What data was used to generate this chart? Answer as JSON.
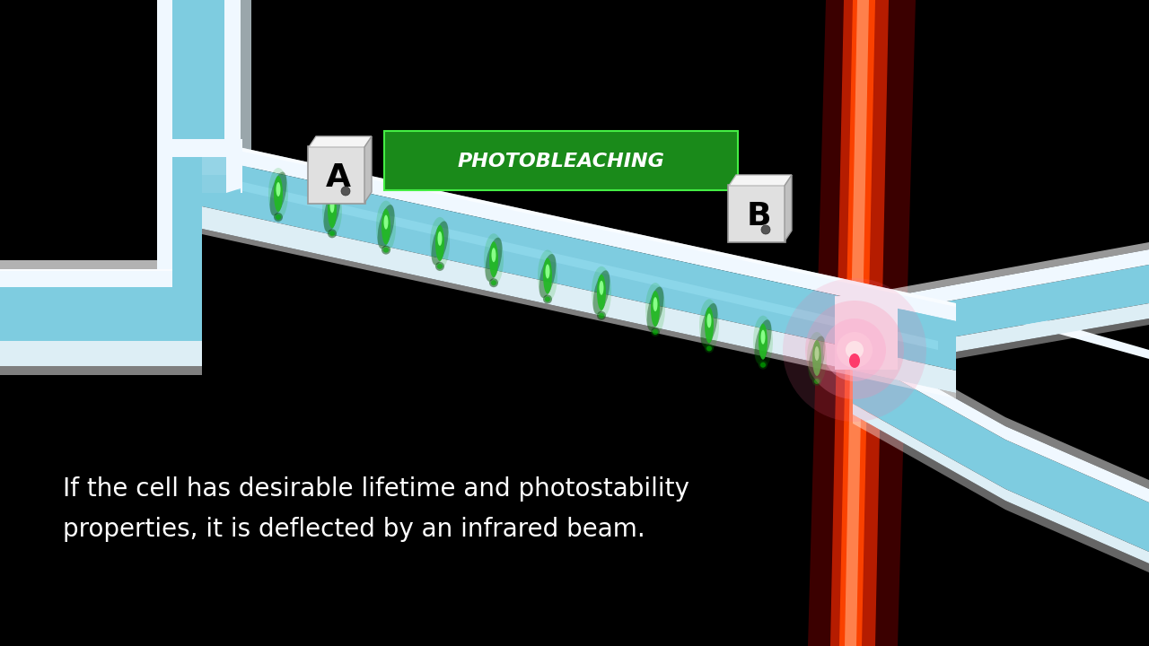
{
  "bg_color": "#000000",
  "text_line1": "If the cell has desirable lifetime and photostability",
  "text_line2": "properties, it is deflected by an infrared beam.",
  "text_color": "#ffffff",
  "text_fontsize": 20,
  "label_A": "A",
  "label_B": "B",
  "photobleaching_text": "PHOTOBLEACHING",
  "chan_fill": "#7ecce0",
  "chan_wall_light": "#ddeef5",
  "chan_wall_mid": "#b8d8e8",
  "chan_wall_dark": "#90bcd0",
  "wall_top": "#f0f8ff",
  "wall_side": "#c8dde8",
  "green_dark": "#006600",
  "green_mid": "#22bb22",
  "green_bright": "#88ff88",
  "red_dark": "#990000",
  "red_mid": "#cc2200",
  "red_bright": "#ff4400",
  "pink_mid": "#ff88bb",
  "pink_bright": "#ffccdd",
  "photo_fill": "#1a8a1a",
  "photo_edge": "#44ee44",
  "label_fill": "#e8e8e8",
  "label_edge": "#aaaaaa",
  "num_cells": 11
}
